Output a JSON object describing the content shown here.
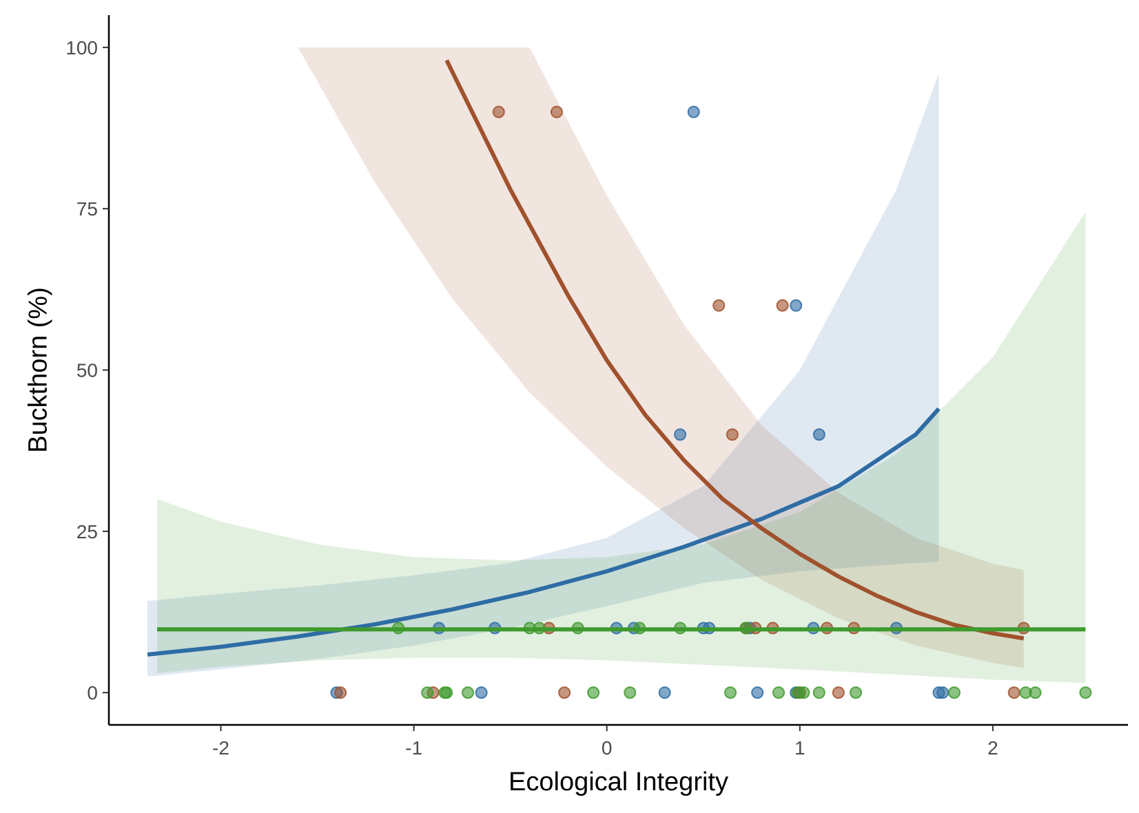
{
  "chart_data": {
    "type": "scatter",
    "title": "",
    "xlabel": "Ecological Integrity",
    "ylabel": "Buckthorn (%)",
    "xlim": [
      -2.58,
      2.7
    ],
    "ylim": [
      -5,
      105
    ],
    "x_ticks": [
      {
        "value": -2,
        "label": "-2"
      },
      {
        "value": -1,
        "label": "-1"
      },
      {
        "value": 0,
        "label": "0"
      },
      {
        "value": 1,
        "label": "1"
      },
      {
        "value": 2,
        "label": "2"
      }
    ],
    "y_ticks": [
      {
        "value": 0,
        "label": "0"
      },
      {
        "value": 25,
        "label": "25"
      },
      {
        "value": 50,
        "label": "50"
      },
      {
        "value": 75,
        "label": "75"
      },
      {
        "value": 100,
        "label": "100"
      }
    ],
    "grid": false,
    "legend": "none",
    "series": [
      {
        "color": "#2e6ca4",
        "points": [
          [
            0.45,
            90
          ],
          [
            0.98,
            60
          ],
          [
            0.38,
            40
          ],
          [
            1.1,
            40
          ],
          [
            -0.87,
            10
          ],
          [
            -0.58,
            10
          ],
          [
            0.05,
            10
          ],
          [
            0.14,
            10
          ],
          [
            0.5,
            10
          ],
          [
            0.53,
            10
          ],
          [
            0.74,
            10
          ],
          [
            1.07,
            10
          ],
          [
            1.5,
            10
          ],
          [
            -1.4,
            0
          ],
          [
            -0.65,
            0
          ],
          [
            0.3,
            0
          ],
          [
            0.78,
            0
          ],
          [
            0.98,
            0
          ],
          [
            1.72,
            0
          ],
          [
            1.74,
            0
          ]
        ],
        "fit": {
          "x": [
            -2.38,
            -2.0,
            -1.6,
            -1.2,
            -0.8,
            -0.4,
            0.0,
            0.4,
            0.8,
            1.2,
            1.6,
            1.72
          ],
          "y": [
            5.9,
            7.1,
            8.7,
            10.6,
            12.9,
            15.6,
            18.8,
            22.6,
            26.9,
            32.0,
            40.0,
            44.0
          ]
        },
        "band": {
          "x": [
            -2.38,
            -2.0,
            -1.5,
            -1.0,
            -0.5,
            0.0,
            0.5,
            1.0,
            1.5,
            1.72
          ],
          "lower": [
            2.5,
            3.6,
            5.2,
            7.3,
            10.0,
            13.4,
            17.0,
            18.8,
            19.9,
            20.3
          ],
          "upper": [
            14.2,
            15.3,
            16.6,
            18.2,
            20.1,
            24.0,
            32.0,
            50.0,
            78.0,
            96.0
          ]
        }
      },
      {
        "color": "#a0522d",
        "points": [
          [
            -0.56,
            90
          ],
          [
            -0.26,
            90
          ],
          [
            0.58,
            60
          ],
          [
            0.91,
            60
          ],
          [
            0.65,
            40
          ],
          [
            -0.3,
            10
          ],
          [
            0.72,
            10
          ],
          [
            0.77,
            10
          ],
          [
            0.86,
            10
          ],
          [
            1.14,
            10
          ],
          [
            1.28,
            10
          ],
          [
            2.16,
            10
          ],
          [
            -1.38,
            0
          ],
          [
            -0.9,
            0
          ],
          [
            -0.22,
            0
          ],
          [
            1.0,
            0
          ],
          [
            1.2,
            0
          ],
          [
            2.11,
            0
          ]
        ],
        "fit": {
          "x": [
            -0.83,
            -0.5,
            -0.2,
            0.0,
            0.2,
            0.4,
            0.6,
            0.8,
            1.0,
            1.2,
            1.4,
            1.6,
            1.8,
            2.0,
            2.16
          ],
          "y": [
            98.0,
            78.0,
            61.5,
            51.5,
            43.0,
            36.0,
            30.0,
            25.5,
            21.5,
            18.0,
            15.0,
            12.5,
            10.5,
            9.2,
            8.4
          ]
        },
        "band": {
          "x": [
            -1.6,
            -1.2,
            -0.8,
            -0.4,
            0.0,
            0.4,
            0.8,
            1.2,
            1.6,
            2.0,
            2.16
          ],
          "lower": [
            100.0,
            79.0,
            61.0,
            46.5,
            35.0,
            25.5,
            17.5,
            11.5,
            7.3,
            4.6,
            3.8
          ],
          "upper": [
            100.0,
            100.0,
            100.0,
            100.0,
            77.0,
            57.0,
            41.5,
            31.0,
            24.0,
            20.0,
            19.0
          ]
        }
      },
      {
        "color": "#3f9a2e",
        "points": [
          [
            -1.08,
            10
          ],
          [
            -0.4,
            10
          ],
          [
            -0.35,
            10
          ],
          [
            -0.15,
            10
          ],
          [
            0.17,
            10
          ],
          [
            0.38,
            10
          ],
          [
            0.72,
            10
          ],
          [
            -0.93,
            0
          ],
          [
            -0.84,
            0
          ],
          [
            -0.83,
            0
          ],
          [
            -0.72,
            0
          ],
          [
            -0.07,
            0
          ],
          [
            0.12,
            0
          ],
          [
            0.64,
            0
          ],
          [
            0.89,
            0
          ],
          [
            0.99,
            0
          ],
          [
            1.02,
            0
          ],
          [
            1.1,
            0
          ],
          [
            1.29,
            0
          ],
          [
            1.8,
            0
          ],
          [
            2.17,
            0
          ],
          [
            2.22,
            0
          ],
          [
            2.48,
            0
          ]
        ],
        "fit": {
          "x": [
            -2.33,
            2.48
          ],
          "y": [
            9.8,
            9.8
          ]
        },
        "band": {
          "x": [
            -2.33,
            -2.0,
            -1.5,
            -1.0,
            -0.5,
            0.0,
            0.5,
            1.0,
            1.5,
            2.0,
            2.48
          ],
          "lower": [
            3.0,
            4.0,
            5.0,
            5.4,
            5.4,
            5.0,
            4.3,
            3.6,
            2.8,
            2.0,
            1.5
          ],
          "upper": [
            30.0,
            26.5,
            23.0,
            21.0,
            20.5,
            21.0,
            23.0,
            28.0,
            37.0,
            52.0,
            74.5
          ]
        }
      }
    ]
  }
}
